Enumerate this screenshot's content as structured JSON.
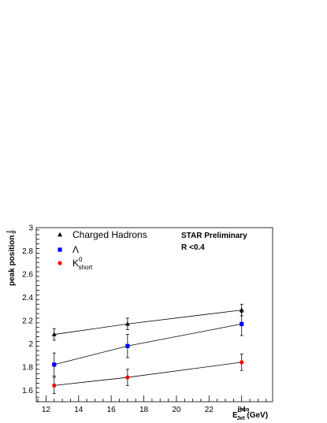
{
  "chart_data": {
    "type": "scatter",
    "title": "",
    "xlabel": {
      "main": "E",
      "sub": "Jet",
      "sup": "reco",
      "unit": " (GeV)"
    },
    "ylabel": {
      "main": "peak position ",
      "sub": "0",
      "sup": "ξ"
    },
    "xlim": [
      11.4,
      25.9
    ],
    "ylim": [
      1.5,
      3.0
    ],
    "x_ticks": [
      12,
      14,
      16,
      18,
      20,
      22,
      24
    ],
    "y_ticks": [
      1.6,
      1.8,
      2.0,
      2.2,
      2.4,
      2.6,
      2.8,
      3.0
    ],
    "x_tick_labels": [
      "12",
      "14",
      "16",
      "18",
      "20",
      "22",
      "24"
    ],
    "y_tick_labels": [
      "1.6",
      "1.8",
      "2",
      "2.2",
      "2.4",
      "2.6",
      "2.8",
      "3"
    ],
    "legend_position": "top-left",
    "annotations": [
      "STAR Preliminary",
      "R <0.4"
    ],
    "series": [
      {
        "name": "Charged Hadrons",
        "marker": "triangle",
        "color": "#000000",
        "x": [
          12.5,
          17.0,
          24.0
        ],
        "y": [
          2.08,
          2.17,
          2.29
        ],
        "yerr": [
          0.05,
          0.05,
          0.05
        ]
      },
      {
        "name": "Λ",
        "marker": "square",
        "color": "#0000ff",
        "x": [
          12.5,
          17.0,
          24.0
        ],
        "y": [
          1.82,
          1.98,
          2.17
        ],
        "yerr": [
          0.1,
          0.1,
          0.1
        ]
      },
      {
        "name": {
          "main": "K",
          "sup": "0",
          "sub": "short"
        },
        "marker": "circle",
        "color": "#ff0000",
        "x": [
          12.5,
          17.0,
          24.0
        ],
        "y": [
          1.64,
          1.71,
          1.84
        ],
        "yerr": [
          0.07,
          0.07,
          0.07
        ]
      }
    ]
  }
}
